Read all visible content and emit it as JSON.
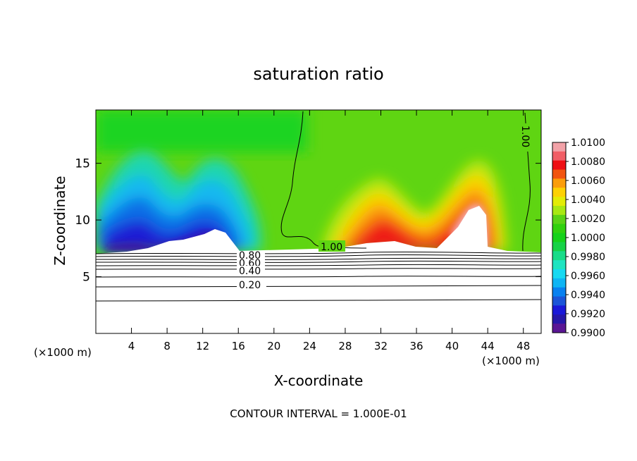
{
  "chart_data": {
    "type": "heatmap",
    "title": "saturation ratio",
    "xlabel": "X-coordinate",
    "ylabel": "Z-coordinate",
    "x_unit_left": "(×1000 m)",
    "x_unit_right": "(×1000 m)",
    "xlim": [
      0,
      50
    ],
    "ylim": [
      0,
      19.7
    ],
    "x_ticks": [
      4,
      8,
      12,
      16,
      20,
      24,
      28,
      32,
      36,
      40,
      44,
      48
    ],
    "y_ticks": [
      5,
      10,
      15
    ],
    "colorbar": {
      "range": [
        0.99,
        1.01
      ],
      "labels": [
        "1.0100",
        "1.0080",
        "1.0060",
        "1.0040",
        "1.0020",
        "1.0000",
        "0.9980",
        "0.9960",
        "0.9940",
        "0.9920",
        "0.9900"
      ],
      "colors": [
        "#f2a2a8",
        "#f15e66",
        "#ee0f14",
        "#f25410",
        "#fb9d0b",
        "#fdd104",
        "#e3ec06",
        "#a8e813",
        "#5ad317",
        "#31d10e",
        "#16d21a",
        "#16d246",
        "#18dc88",
        "#1fe4c1",
        "#17d9f1",
        "#0eb5f4",
        "#0881f0",
        "#1b55d8",
        "#1a19d8",
        "#2618a8",
        "#5a1694"
      ]
    },
    "contour_lines": [
      {
        "label": "1.00",
        "z": [
          7.3,
          7.3
        ]
      },
      {
        "label": "0.80",
        "z": [
          7.1,
          7.1
        ]
      },
      {
        "label": "0.60",
        "z": [
          6.6,
          6.6
        ]
      },
      {
        "label": "0.40",
        "z": [
          6.0,
          6.0
        ]
      },
      {
        "label": "0.20",
        "z": [
          4.6,
          4.6
        ]
      }
    ],
    "features": [
      {
        "name": "dry-region-left",
        "x_range": [
          0,
          20
        ],
        "z_range": [
          7.3,
          17
        ],
        "min_value": 0.99
      },
      {
        "name": "moist-region-right",
        "x_range": [
          26,
          47
        ],
        "z_range": [
          7.3,
          14
        ],
        "max_value": 1.01
      }
    ],
    "footer": "CONTOUR INTERVAL = 1.000E-01"
  }
}
